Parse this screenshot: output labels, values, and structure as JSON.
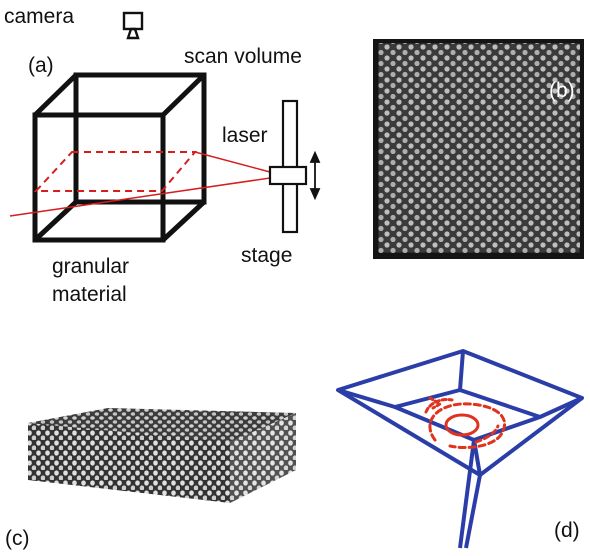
{
  "panel_a": {
    "tag": "(a)",
    "camera_label": "camera",
    "scan_volume_label": "scan volume",
    "laser_label": "laser",
    "stage_label": "stage",
    "material_line1": "granular",
    "material_line2": "material"
  },
  "panel_b": {
    "tag": "(b)"
  },
  "panel_c": {
    "tag": "(c)"
  },
  "panel_d": {
    "tag": "(d)"
  },
  "colors": {
    "frame": "#111111",
    "laser": "#d71e1e",
    "box_d": "#2b3ea8",
    "trace_d": "#e0321e",
    "image_bg": "#2e2e2e",
    "grain": "#bdbdbd"
  }
}
